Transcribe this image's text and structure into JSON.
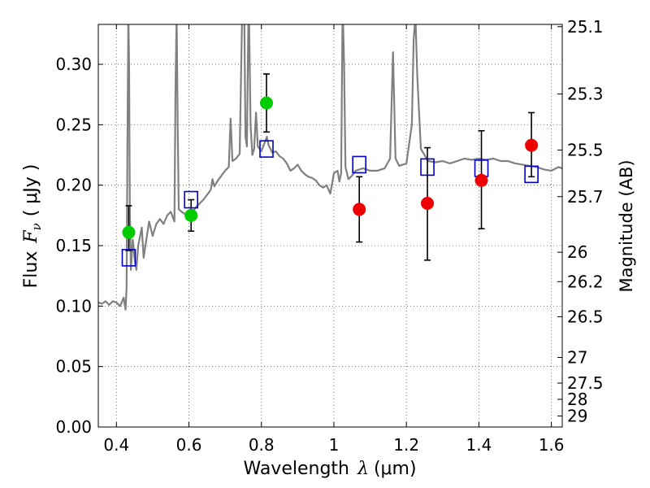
{
  "chart_data": {
    "type": "scatter",
    "xlabel_text": "Wavelength",
    "xlabel_math": "λ",
    "xlabel_unit": "(μm)",
    "ylabel_text": "Flux",
    "ylabel_math": "F",
    "ylabel_sub": "ν",
    "ylabel_unit": "( μJy )",
    "y2label": "Magnitude (AB)",
    "xlim": [
      0.35,
      1.63
    ],
    "ylim": [
      0.0,
      0.333
    ],
    "grid": true,
    "xticks": [
      {
        "v": 0.4,
        "label": "0.4"
      },
      {
        "v": 0.6,
        "label": "0.6"
      },
      {
        "v": 0.8,
        "label": "0.8"
      },
      {
        "v": 1.0,
        "label": "1"
      },
      {
        "v": 1.2,
        "label": "1.2"
      },
      {
        "v": 1.4,
        "label": "1.4"
      },
      {
        "v": 1.6,
        "label": "1.6"
      }
    ],
    "yticks": [
      {
        "v": 0.0,
        "label": "0.00"
      },
      {
        "v": 0.05,
        "label": "0.05"
      },
      {
        "v": 0.1,
        "label": "0.10"
      },
      {
        "v": 0.15,
        "label": "0.15"
      },
      {
        "v": 0.2,
        "label": "0.20"
      },
      {
        "v": 0.25,
        "label": "0.25"
      },
      {
        "v": 0.3,
        "label": "0.30"
      }
    ],
    "y2ticks": [
      {
        "mag": 25.1,
        "label": "25.1"
      },
      {
        "mag": 25.3,
        "label": "25.3"
      },
      {
        "mag": 25.5,
        "label": "25.5"
      },
      {
        "mag": 25.7,
        "label": "25.7"
      },
      {
        "mag": 26.0,
        "label": "26"
      },
      {
        "mag": 26.2,
        "label": "26.2"
      },
      {
        "mag": 26.5,
        "label": "26.5"
      },
      {
        "mag": 27.0,
        "label": "27"
      },
      {
        "mag": 27.5,
        "label": "27.5"
      },
      {
        "mag": 28.0,
        "label": "28"
      },
      {
        "mag": 29.0,
        "label": "29"
      }
    ],
    "colors": {
      "spectrum": "#808080",
      "model": "#0000cc",
      "detected": "#00cc00",
      "undetected": "#ee0000",
      "errorbar": "#000000",
      "grid": "#555555"
    },
    "spectrum": [
      [
        0.35,
        0.103
      ],
      [
        0.36,
        0.102
      ],
      [
        0.37,
        0.104
      ],
      [
        0.38,
        0.101
      ],
      [
        0.39,
        0.104
      ],
      [
        0.4,
        0.103
      ],
      [
        0.41,
        0.1
      ],
      [
        0.42,
        0.107
      ],
      [
        0.425,
        0.097
      ],
      [
        0.428,
        0.115
      ],
      [
        0.431,
        0.26
      ],
      [
        0.433,
        0.34
      ],
      [
        0.435,
        0.3
      ],
      [
        0.437,
        0.18
      ],
      [
        0.44,
        0.13
      ],
      [
        0.445,
        0.155
      ],
      [
        0.45,
        0.14
      ],
      [
        0.455,
        0.13
      ],
      [
        0.46,
        0.15
      ],
      [
        0.47,
        0.165
      ],
      [
        0.475,
        0.14
      ],
      [
        0.48,
        0.15
      ],
      [
        0.49,
        0.17
      ],
      [
        0.5,
        0.158
      ],
      [
        0.51,
        0.168
      ],
      [
        0.52,
        0.172
      ],
      [
        0.53,
        0.168
      ],
      [
        0.54,
        0.175
      ],
      [
        0.55,
        0.178
      ],
      [
        0.56,
        0.17
      ],
      [
        0.563,
        0.28
      ],
      [
        0.566,
        0.34
      ],
      [
        0.569,
        0.25
      ],
      [
        0.572,
        0.18
      ],
      [
        0.58,
        0.178
      ],
      [
        0.59,
        0.176
      ],
      [
        0.6,
        0.177
      ],
      [
        0.61,
        0.178
      ],
      [
        0.62,
        0.182
      ],
      [
        0.63,
        0.185
      ],
      [
        0.64,
        0.188
      ],
      [
        0.65,
        0.192
      ],
      [
        0.66,
        0.196
      ],
      [
        0.665,
        0.205
      ],
      [
        0.67,
        0.199
      ],
      [
        0.68,
        0.204
      ],
      [
        0.69,
        0.208
      ],
      [
        0.7,
        0.212
      ],
      [
        0.71,
        0.215
      ],
      [
        0.715,
        0.255
      ],
      [
        0.72,
        0.22
      ],
      [
        0.73,
        0.222
      ],
      [
        0.74,
        0.226
      ],
      [
        0.748,
        0.36
      ],
      [
        0.752,
        0.37
      ],
      [
        0.756,
        0.24
      ],
      [
        0.76,
        0.232
      ],
      [
        0.765,
        0.36
      ],
      [
        0.77,
        0.25
      ],
      [
        0.775,
        0.225
      ],
      [
        0.78,
        0.23
      ],
      [
        0.785,
        0.26
      ],
      [
        0.79,
        0.232
      ],
      [
        0.8,
        0.228
      ],
      [
        0.81,
        0.236
      ],
      [
        0.815,
        0.24
      ],
      [
        0.82,
        0.233
      ],
      [
        0.83,
        0.227
      ],
      [
        0.84,
        0.228
      ],
      [
        0.85,
        0.224
      ],
      [
        0.86,
        0.222
      ],
      [
        0.87,
        0.218
      ],
      [
        0.88,
        0.212
      ],
      [
        0.89,
        0.214
      ],
      [
        0.9,
        0.217
      ],
      [
        0.91,
        0.212
      ],
      [
        0.92,
        0.209
      ],
      [
        0.93,
        0.207
      ],
      [
        0.94,
        0.206
      ],
      [
        0.95,
        0.204
      ],
      [
        0.96,
        0.2
      ],
      [
        0.97,
        0.198
      ],
      [
        0.98,
        0.2
      ],
      [
        0.99,
        0.193
      ],
      [
        1.0,
        0.21
      ],
      [
        1.01,
        0.212
      ],
      [
        1.015,
        0.203
      ],
      [
        1.02,
        0.21
      ],
      [
        1.024,
        0.35
      ],
      [
        1.028,
        0.3
      ],
      [
        1.032,
        0.215
      ],
      [
        1.04,
        0.205
      ],
      [
        1.05,
        0.208
      ],
      [
        1.06,
        0.212
      ],
      [
        1.08,
        0.214
      ],
      [
        1.1,
        0.212
      ],
      [
        1.12,
        0.212
      ],
      [
        1.14,
        0.214
      ],
      [
        1.155,
        0.222
      ],
      [
        1.163,
        0.31
      ],
      [
        1.17,
        0.222
      ],
      [
        1.18,
        0.216
      ],
      [
        1.2,
        0.218
      ],
      [
        1.215,
        0.25
      ],
      [
        1.22,
        0.32
      ],
      [
        1.225,
        0.34
      ],
      [
        1.23,
        0.29
      ],
      [
        1.24,
        0.23
      ],
      [
        1.26,
        0.22
      ],
      [
        1.28,
        0.219
      ],
      [
        1.3,
        0.22
      ],
      [
        1.32,
        0.218
      ],
      [
        1.34,
        0.22
      ],
      [
        1.36,
        0.222
      ],
      [
        1.38,
        0.221
      ],
      [
        1.4,
        0.222
      ],
      [
        1.42,
        0.221
      ],
      [
        1.44,
        0.222
      ],
      [
        1.46,
        0.22
      ],
      [
        1.48,
        0.22
      ],
      [
        1.5,
        0.218
      ],
      [
        1.52,
        0.217
      ],
      [
        1.54,
        0.216
      ],
      [
        1.56,
        0.215
      ],
      [
        1.58,
        0.213
      ],
      [
        1.6,
        0.212
      ],
      [
        1.62,
        0.215
      ],
      [
        1.63,
        0.214
      ]
    ],
    "model_points": [
      {
        "x": 0.434,
        "y": 0.14
      },
      {
        "x": 0.606,
        "y": 0.188
      },
      {
        "x": 0.814,
        "y": 0.23
      },
      {
        "x": 1.07,
        "y": 0.217
      },
      {
        "x": 1.258,
        "y": 0.215
      },
      {
        "x": 1.407,
        "y": 0.214
      },
      {
        "x": 1.545,
        "y": 0.209
      }
    ],
    "detected_points": [
      {
        "x": 0.434,
        "y": 0.161,
        "err_low": 0.146,
        "err_high": 0.183
      },
      {
        "x": 0.606,
        "y": 0.175,
        "err_low": 0.162,
        "err_high": 0.188
      },
      {
        "x": 0.814,
        "y": 0.268,
        "err_low": 0.244,
        "err_high": 0.292
      }
    ],
    "undetected_points": [
      {
        "x": 1.07,
        "y": 0.18,
        "err_low": 0.153,
        "err_high": 0.207
      },
      {
        "x": 1.258,
        "y": 0.185,
        "err_low": 0.138,
        "err_high": 0.231
      },
      {
        "x": 1.407,
        "y": 0.204,
        "err_low": 0.164,
        "err_high": 0.245
      },
      {
        "x": 1.545,
        "y": 0.233,
        "err_low": 0.207,
        "err_high": 0.26
      }
    ]
  }
}
